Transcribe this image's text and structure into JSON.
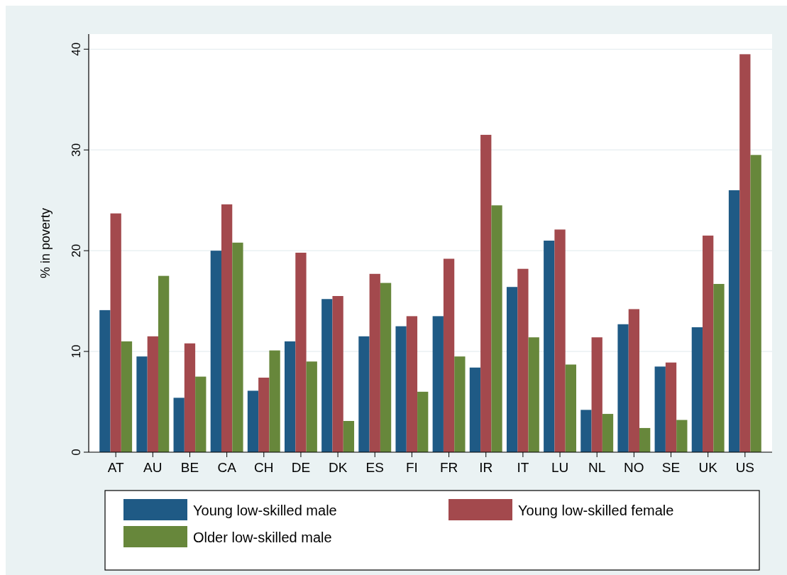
{
  "chart_data": {
    "type": "bar",
    "ylabel": "% in poverty",
    "categories": [
      "AT",
      "AU",
      "BE",
      "CA",
      "CH",
      "DE",
      "DK",
      "ES",
      "FI",
      "FR",
      "IR",
      "IT",
      "LU",
      "NL",
      "NO",
      "SE",
      "UK",
      "US"
    ],
    "series": [
      {
        "name": "Young low-skilled male",
        "color": "#1f5a85",
        "values": [
          14.1,
          9.5,
          5.4,
          20.0,
          6.1,
          11.0,
          15.2,
          11.5,
          12.5,
          13.5,
          8.4,
          16.4,
          21.0,
          4.2,
          12.7,
          8.5,
          12.4,
          26.0
        ]
      },
      {
        "name": "Young low-skilled female",
        "color": "#a3494d",
        "values": [
          23.7,
          11.5,
          10.8,
          24.6,
          7.4,
          19.8,
          15.5,
          17.7,
          13.5,
          19.2,
          31.5,
          18.2,
          22.1,
          11.4,
          14.2,
          8.9,
          21.5,
          39.5
        ]
      },
      {
        "name": "Older low-skilled male",
        "color": "#67873b",
        "values": [
          11.0,
          17.5,
          7.5,
          20.8,
          10.1,
          9.0,
          3.1,
          16.8,
          6.0,
          9.5,
          24.5,
          11.4,
          8.7,
          3.8,
          2.4,
          3.2,
          16.7,
          29.5
        ]
      }
    ],
    "ylim": [
      0,
      41.5
    ],
    "yticks": [
      0,
      10,
      20,
      30,
      40
    ],
    "grid": "y",
    "legend": "bottom"
  }
}
